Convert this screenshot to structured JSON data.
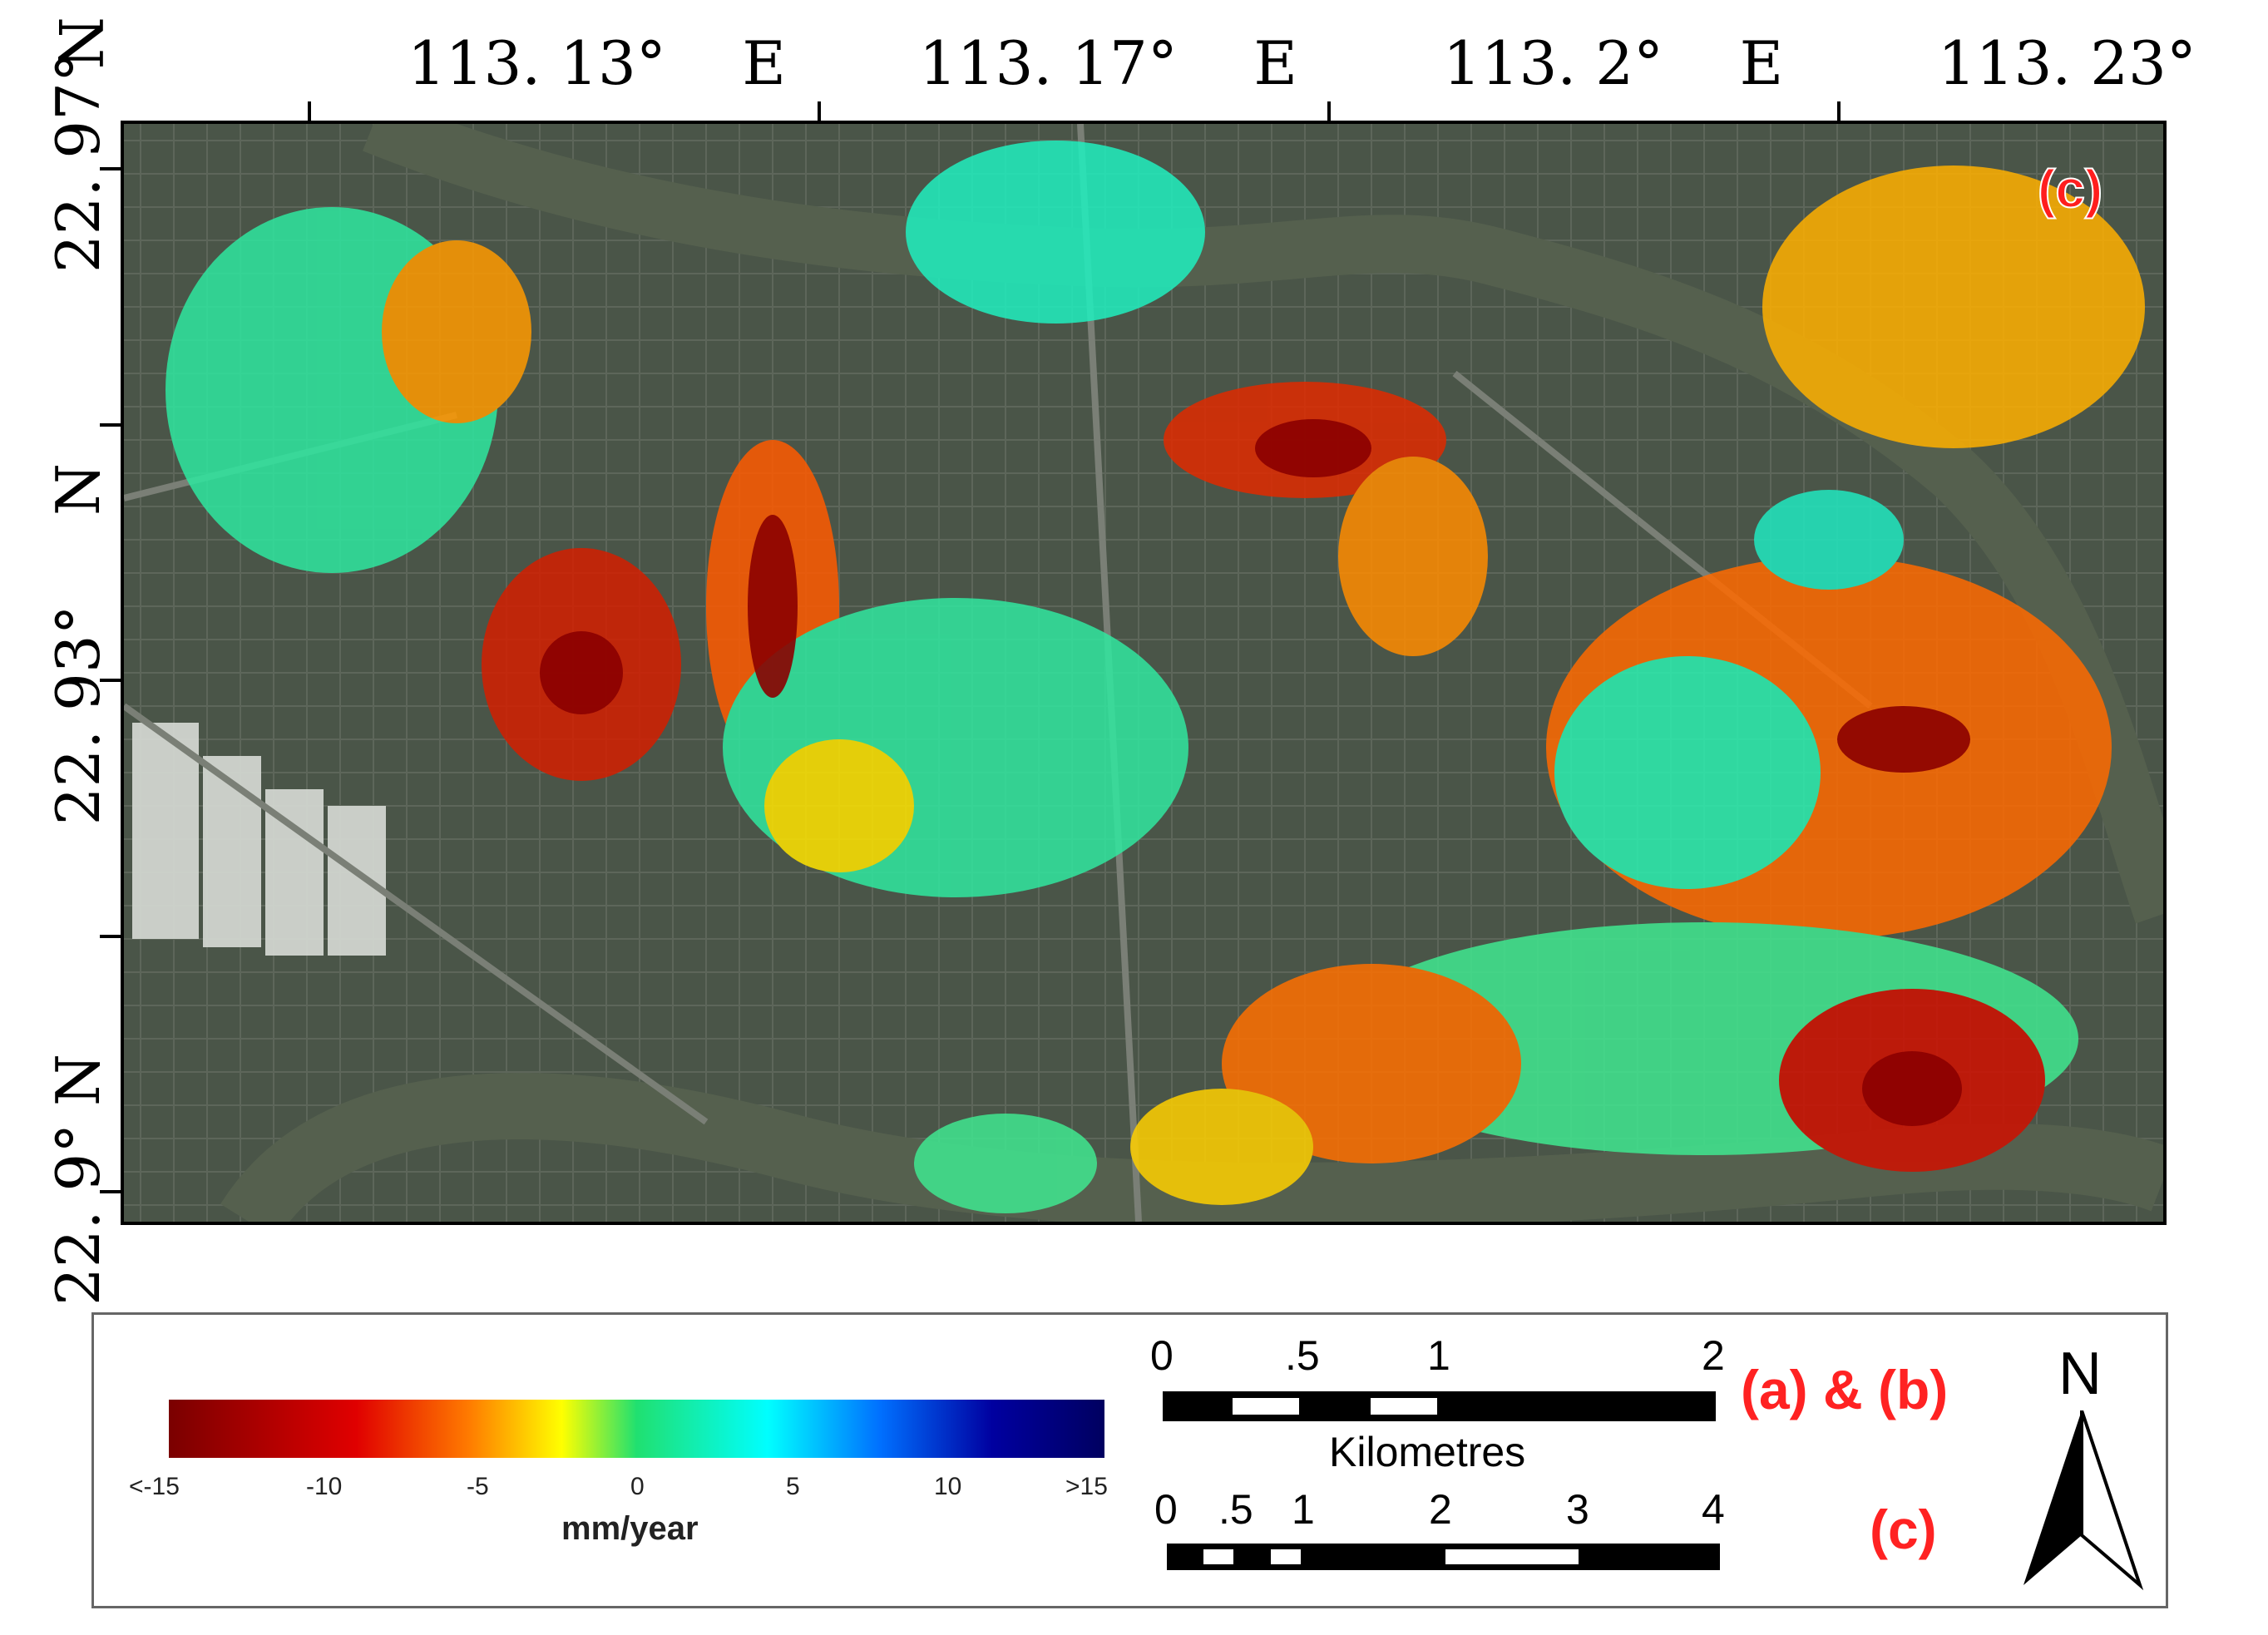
{
  "map": {
    "panel_tag": "(c)",
    "lon_labels": [
      {
        "deg": "113. 13°",
        "suffix": "E"
      },
      {
        "deg": "113. 17°",
        "suffix": "E"
      },
      {
        "deg": "113. 2°",
        "suffix": "E"
      },
      {
        "deg": "113. 23°",
        "suffix": "E"
      }
    ],
    "lat_labels": [
      {
        "deg": "22. 97°",
        "suffix": "N"
      },
      {
        "deg": "22. 93°",
        "suffix": "N"
      },
      {
        "deg": "22. 9°",
        "suffix": "N"
      }
    ],
    "corner_n": "N"
  },
  "legend": {
    "colorbar": {
      "ticks": [
        "<-15",
        "-10",
        "-5",
        "0",
        "5",
        "10",
        ">15"
      ],
      "unit": "mm/year",
      "colors": [
        "#7a0000",
        "#e00000",
        "#ff7a00",
        "#ffff00",
        "#20e070",
        "#00ffff",
        "#0070ff",
        "#0000a0",
        "#000060"
      ]
    },
    "scale_ab": {
      "numbers": [
        "0",
        ".5",
        "1",
        "2"
      ],
      "unit": "Kilometres",
      "label": "(a) & (b)"
    },
    "scale_c": {
      "numbers": [
        "0",
        ".5",
        "1",
        "2",
        "3",
        "4"
      ],
      "label": "(c)"
    },
    "north": "N"
  }
}
